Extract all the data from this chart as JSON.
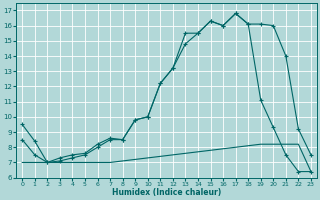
{
  "xlabel": "Humidex (Indice chaleur)",
  "xlim": [
    0,
    23
  ],
  "ylim": [
    6,
    17
  ],
  "yticks": [
    6,
    7,
    8,
    9,
    10,
    11,
    12,
    13,
    14,
    15,
    16,
    17
  ],
  "xticks": [
    0,
    1,
    2,
    3,
    4,
    5,
    6,
    7,
    8,
    9,
    10,
    11,
    12,
    13,
    14,
    15,
    16,
    17,
    18,
    19,
    20,
    21,
    22,
    23
  ],
  "bg_color": "#b2d8d8",
  "grid_color": "#c8e0e0",
  "line_color": "#006666",
  "line1_x": [
    0,
    1,
    2,
    3,
    4,
    5,
    6,
    7,
    8,
    9,
    10,
    11,
    12,
    13,
    14,
    15,
    16,
    17,
    18,
    19,
    20,
    21,
    22,
    23
  ],
  "line1_y": [
    9.5,
    8.4,
    7.0,
    7.3,
    7.5,
    7.6,
    8.2,
    8.6,
    8.5,
    9.8,
    10.0,
    12.2,
    13.2,
    15.5,
    15.5,
    16.3,
    16.0,
    16.8,
    16.1,
    16.1,
    16.0,
    14.0,
    9.2,
    7.5
  ],
  "line2_x": [
    0,
    1,
    2,
    3,
    4,
    5,
    6,
    7,
    8,
    9,
    10,
    11,
    12,
    13,
    14,
    15,
    16,
    17,
    18,
    19,
    20,
    21,
    22,
    23
  ],
  "line2_y": [
    7.0,
    7.0,
    7.0,
    7.0,
    7.0,
    7.0,
    7.0,
    7.0,
    7.1,
    7.2,
    7.3,
    7.4,
    7.5,
    7.6,
    7.7,
    7.8,
    7.9,
    8.0,
    8.1,
    8.2,
    8.2,
    8.2,
    8.2,
    6.4
  ],
  "line3_x": [
    0,
    1,
    2,
    3,
    4,
    5,
    6,
    7,
    8,
    9,
    10,
    11,
    12,
    13,
    14,
    15,
    16,
    17,
    18,
    19,
    20,
    21,
    22,
    23
  ],
  "line3_y": [
    8.5,
    7.5,
    7.0,
    7.1,
    7.3,
    7.5,
    8.0,
    8.5,
    8.5,
    9.8,
    10.0,
    12.2,
    13.2,
    14.8,
    15.5,
    16.3,
    16.0,
    16.8,
    16.1,
    11.1,
    9.3,
    7.5,
    6.4,
    6.4
  ]
}
